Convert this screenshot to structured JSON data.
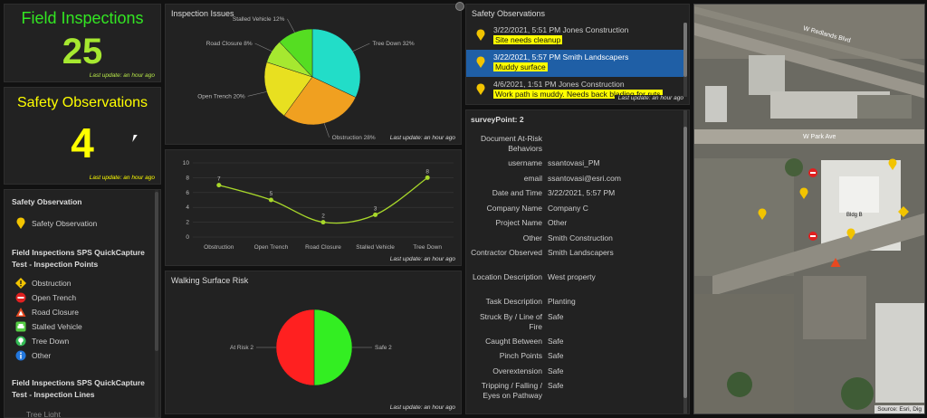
{
  "field_inspections": {
    "title": "Field Inspections",
    "count": "25",
    "updated": "Last update: an hour ago"
  },
  "safety_observations_count": {
    "title": "Safety Observations",
    "count": "4",
    "updated": "Last update: an hour ago"
  },
  "legend": {
    "section1": "Safety Observation",
    "section1_items": [
      {
        "label": "Safety Observation",
        "icon": "yellow-pin-icon"
      }
    ],
    "section2": "Field Inspections SPS QuickCapture Test - Inspection Points",
    "section2_items": [
      {
        "label": "Obstruction",
        "icon": "diamond-warning-icon"
      },
      {
        "label": "Open Trench",
        "icon": "no-entry-icon"
      },
      {
        "label": "Road Closure",
        "icon": "triangle-warning-icon"
      },
      {
        "label": "Stalled Vehicle",
        "icon": "car-icon"
      },
      {
        "label": "Tree Down",
        "icon": "tree-icon"
      },
      {
        "label": "Other",
        "icon": "info-icon"
      }
    ],
    "section3": "Field Inspections SPS QuickCapture Test - Inspection Lines",
    "section3_cut": "Tree Light"
  },
  "inspection_issues": {
    "title": "Inspection Issues",
    "updated": "Last update: an hour ago",
    "chart_data": {
      "type": "pie",
      "title": "Inspection Issues",
      "slices": [
        {
          "label": "Tree Down 32%",
          "value": 32,
          "color": "#22ddc8"
        },
        {
          "label": "Obstruction 28%",
          "value": 28,
          "color": "#f0a020"
        },
        {
          "label": "Open Trench 20%",
          "value": 20,
          "color": "#e8e020"
        },
        {
          "label": "Road Closure 8%",
          "value": 8,
          "color": "#a6e830"
        },
        {
          "label": "Stalled Vehicle 12%",
          "value": 12,
          "color": "#55dd22"
        }
      ]
    }
  },
  "issues_line": {
    "updated": "Last update: an hour ago",
    "chart_data": {
      "type": "line",
      "categories": [
        "Obstruction",
        "Open Trench",
        "Road Closure",
        "Stalled Vehicle",
        "Tree Down"
      ],
      "values": [
        7,
        5,
        2,
        3,
        8
      ],
      "ylim": [
        0,
        10
      ],
      "yticks": [
        "0",
        "2",
        "4",
        "6",
        "8",
        "10"
      ],
      "grid": true,
      "color": "#a8d82a"
    }
  },
  "walking_risk": {
    "title": "Walking Surface Risk",
    "updated": "Last update: an hour ago",
    "chart_data": {
      "type": "pie",
      "title": "Walking Surface Risk",
      "slices": [
        {
          "label": "Safe 2",
          "value": 2,
          "color": "#33ee22"
        },
        {
          "label": "At Risk 2",
          "value": 2,
          "color": "#ff2020"
        }
      ]
    }
  },
  "observations_list": {
    "title": "Safety Observations",
    "updated": "Last update: an hour ago",
    "items": [
      {
        "meta": "3/22/2021, 5:51 PM   Jones Construction",
        "note": "Site needs cleanup"
      },
      {
        "meta": "3/22/2021, 5:57 PM   Smith Landscapers",
        "note": "Muddy surface"
      },
      {
        "meta": "4/6/2021, 1:51 PM   Jones Construction",
        "note": "Work path is muddy. Needs back blading for ruts"
      }
    ]
  },
  "details": {
    "title": "surveyPoint: 2",
    "rows": [
      {
        "label": "Document At-Risk Behaviors",
        "value": ""
      },
      {
        "label": "username",
        "value": "ssantovasi_PM"
      },
      {
        "label": "email",
        "value": "ssantovasi@esri.com"
      },
      {
        "label": "Date and Time",
        "value": "3/22/2021, 5:57 PM"
      },
      {
        "label": "Company Name",
        "value": "Company C"
      },
      {
        "label": "Project Name",
        "value": "Other"
      },
      {
        "label": "Other",
        "value": "Smith Construction"
      },
      {
        "label": "Contractor Observed",
        "value": "Smith Landscapers"
      },
      {
        "label": "Location Description",
        "value": "West property"
      },
      {
        "label": "Task Description",
        "value": "Planting"
      },
      {
        "label": "Struck By / Line of Fire",
        "value": "Safe"
      },
      {
        "label": "Caught Between",
        "value": "Safe"
      },
      {
        "label": "Pinch Points",
        "value": "Safe"
      },
      {
        "label": "Overextension",
        "value": "Safe"
      },
      {
        "label": "Tripping / Falling / Eyes on Pathway",
        "value": "Safe"
      }
    ]
  },
  "map": {
    "streets": [
      "W Redlands Blvd",
      "W Park Ave"
    ],
    "building_label": "Bldg B",
    "attribution": "Source: Esri, Dig"
  }
}
